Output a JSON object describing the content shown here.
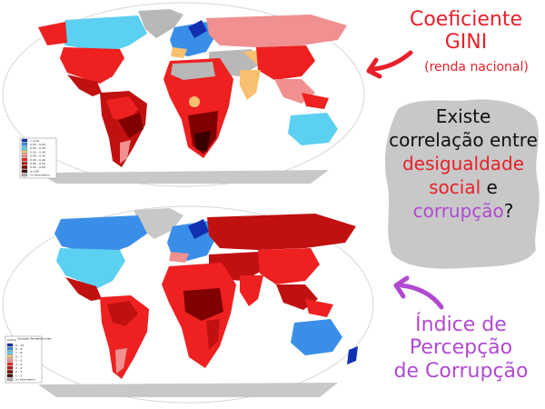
{
  "annotations": {
    "gini_title_line1": "Coeficiente",
    "gini_title_line2": "GINI",
    "gini_subtitle": "(renda nacional)",
    "question": {
      "l1": "Existe",
      "l2": "correlação",
      "l3": "entre",
      "l4": "desigualdade",
      "l5": "social",
      "l6a": "e ",
      "l6b": "corrupção",
      "l6c": "?"
    },
    "cpi_title_line1": "Índice de",
    "cpi_title_line2": "Percepção",
    "cpi_title_line3": "de Corrupção"
  },
  "colors": {
    "red_text": "#e8202a",
    "purple_text": "#b04ad0",
    "cloud": "#c8c8c8",
    "ocean": "#ffffff",
    "map_border": "#d0d0d0"
  },
  "top_map": {
    "name": "Coeficiente GINI",
    "legend": {
      "rows": [
        {
          "color": "#1030b0",
          "label": "< 0.25"
        },
        {
          "color": "#3a8ee8",
          "label": "0.25 – 0.29"
        },
        {
          "color": "#5cd0f0",
          "label": "0.30 – 0.34"
        },
        {
          "color": "#f8c070",
          "label": "0.35 – 0.39"
        },
        {
          "color": "#f09090",
          "label": "0.40 – 0.44"
        },
        {
          "color": "#ee2020",
          "label": "0.45 – 0.49"
        },
        {
          "color": "#c01010",
          "label": "0.50 – 0.54"
        },
        {
          "color": "#800000",
          "label": "0.55 – 0.59"
        },
        {
          "color": "#3a0000",
          "label": "≥ 0.60"
        },
        {
          "color": "#b0b0b0",
          "label": "no information"
        }
      ]
    }
  },
  "bottom_map": {
    "name": "Corruption Perceptions Index",
    "legend": {
      "col_header_left": "Colour",
      "col_header_right": "Corruption Perceptions Index",
      "rows": [
        {
          "color": "#1030b0",
          "label": "9 – 10"
        },
        {
          "color": "#3a8ee8",
          "label": "8 – 9"
        },
        {
          "color": "#5cd0f0",
          "label": "7 – 8"
        },
        {
          "color": "#f8c070",
          "label": "6 – 7"
        },
        {
          "color": "#f09090",
          "label": "5 – 6"
        },
        {
          "color": "#ee2020",
          "label": "4 – 5"
        },
        {
          "color": "#c01010",
          "label": "3 – 4"
        },
        {
          "color": "#800000",
          "label": "2 – 3"
        },
        {
          "color": "#3a0000",
          "label": "1 – 2"
        },
        {
          "color": "#b0b0b0",
          "label": "no information"
        }
      ]
    }
  }
}
